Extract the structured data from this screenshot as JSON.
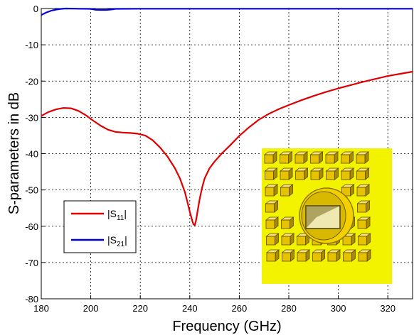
{
  "chart_data": {
    "type": "line",
    "title": "",
    "xlabel": "Frequency (GHz)",
    "ylabel": "S-parameters in dB",
    "xlim": [
      180,
      330
    ],
    "ylim": [
      -80,
      0
    ],
    "xticks": [
      180,
      200,
      220,
      240,
      260,
      280,
      300,
      320
    ],
    "yticks": [
      0,
      -10,
      -20,
      -30,
      -40,
      -50,
      -60,
      -70,
      -80
    ],
    "grid": true,
    "legend_position": "lower-left",
    "series": [
      {
        "name": "|S11|",
        "legend_main": "|S",
        "legend_sub": "11",
        "legend_end": "|",
        "color": "#e00000",
        "x": [
          180,
          183,
          186,
          189,
          192,
          195,
          198,
          201,
          204,
          207,
          210,
          213,
          216,
          219,
          222,
          225,
          228,
          231,
          234,
          236,
          238,
          239,
          240,
          241,
          241.5,
          242,
          242.5,
          243,
          244,
          245,
          246,
          248,
          250,
          253,
          256,
          260,
          264,
          268,
          272,
          276,
          280,
          285,
          290,
          295,
          300,
          305,
          310,
          315,
          320,
          325,
          330
        ],
        "y": [
          -29.6,
          -28.5,
          -27.8,
          -27.4,
          -27.5,
          -28.2,
          -29.4,
          -30.9,
          -32.3,
          -33.4,
          -34.0,
          -34.2,
          -34.3,
          -34.5,
          -35.0,
          -36.3,
          -38.3,
          -40.8,
          -44.0,
          -46.8,
          -50.5,
          -53.2,
          -56.0,
          -58.5,
          -59.5,
          -59.7,
          -58.5,
          -56.5,
          -52.5,
          -49.3,
          -46.8,
          -44.0,
          -42.2,
          -39.9,
          -37.9,
          -35.1,
          -32.7,
          -30.6,
          -29.0,
          -27.7,
          -26.6,
          -25.3,
          -24.1,
          -23.0,
          -22.0,
          -21.1,
          -20.2,
          -19.4,
          -18.6,
          -18.0,
          -17.4
        ]
      },
      {
        "name": "|S21|",
        "legend_main": "|S",
        "legend_sub": "21",
        "legend_end": "|",
        "color": "#0000dd",
        "x": [
          180,
          182,
          184,
          186,
          188,
          190,
          195,
          200,
          202,
          204,
          206,
          208,
          210,
          220,
          240,
          260,
          280,
          300,
          320,
          330
        ],
        "y": [
          -1.8,
          -1.1,
          -0.6,
          -0.3,
          -0.1,
          0.0,
          -0.05,
          -0.1,
          -0.35,
          -0.4,
          -0.4,
          -0.3,
          -0.1,
          -0.05,
          -0.05,
          -0.05,
          -0.05,
          -0.05,
          -0.05,
          -0.05
        ]
      }
    ],
    "inset": {
      "description_icon": "antenna-array-model-icon",
      "background_color": "#f3f300",
      "cube_color": "#e7c200"
    }
  }
}
